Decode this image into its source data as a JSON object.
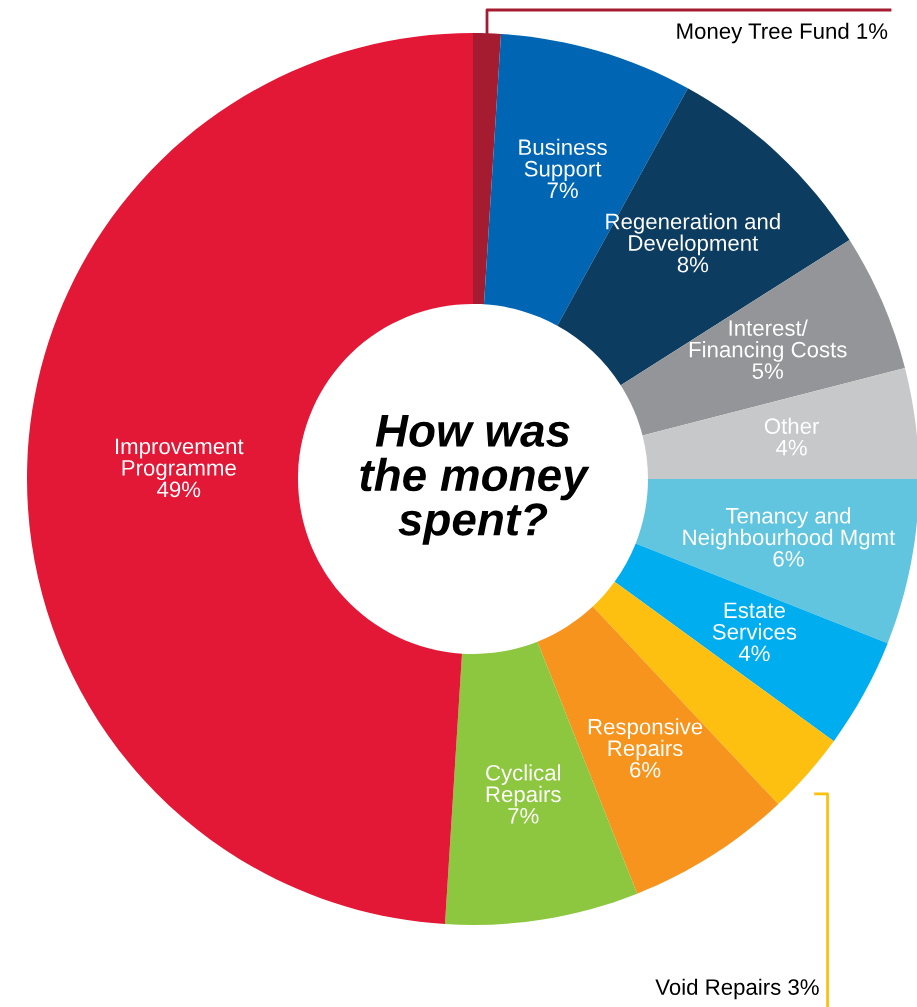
{
  "chart_data": {
    "type": "donut",
    "title": "How was\nthe money\nspent?",
    "categories": [
      "Money Tree Fund",
      "Business\nSupport",
      "Regeneration and\nDevelopment",
      "Interest/\nFinancing Costs",
      "Other",
      "Tenancy and\nNeighbourhood Mgmt",
      "Estate\nServices",
      "Void Repairs",
      "Responsive\nRepairs",
      "Cyclical\nRepairs",
      "Improvement\nProgramme"
    ],
    "values": [
      1,
      7,
      8,
      5,
      4,
      6,
      4,
      3,
      6,
      7,
      49
    ],
    "value_labels": [
      "1%",
      "7%",
      "8%",
      "5%",
      "4%",
      "6%",
      "4%",
      "3%",
      "6%",
      "7%",
      "49%"
    ],
    "colors": [
      "#a51c30",
      "#0066b3",
      "#0d3c61",
      "#939598",
      "#c7c8ca",
      "#61c5e0",
      "#00aeef",
      "#fdc010",
      "#f7941d",
      "#8dc63f",
      "#e31837"
    ],
    "legend": false
  }
}
